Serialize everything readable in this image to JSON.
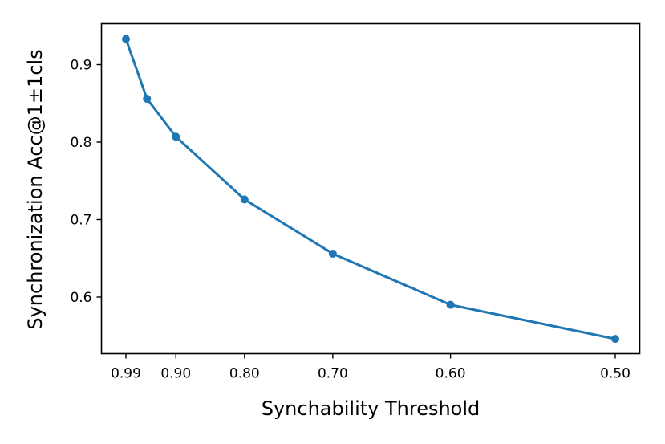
{
  "chart_data": {
    "type": "line",
    "title": "",
    "xlabel": "Synchability Threshold",
    "ylabel": "Synchronization Acc@1±1cls",
    "x_tick_labels": [
      "0.99",
      "0.90",
      "0.80",
      "0.70",
      "0.60",
      "0.50"
    ],
    "x_ticks": [
      0.99,
      0.9,
      0.8,
      0.7,
      0.6,
      0.5
    ],
    "y_tick_labels": [
      "0.6",
      "0.7",
      "0.8",
      "0.9"
    ],
    "y_ticks": [
      0.6,
      0.7,
      0.8,
      0.9
    ],
    "x_scale": "reciprocal",
    "x_reversed": true,
    "xlim": [
      0.99,
      0.5
    ],
    "ylim": [
      0.52,
      0.95
    ],
    "grid": false,
    "color": "#1f77b4",
    "series": [
      {
        "x": [
          0.99,
          0.95,
          0.9,
          0.8,
          0.7,
          0.6,
          0.5
        ],
        "values": [
          0.933,
          0.856,
          0.807,
          0.726,
          0.656,
          0.59,
          0.546
        ]
      }
    ]
  }
}
